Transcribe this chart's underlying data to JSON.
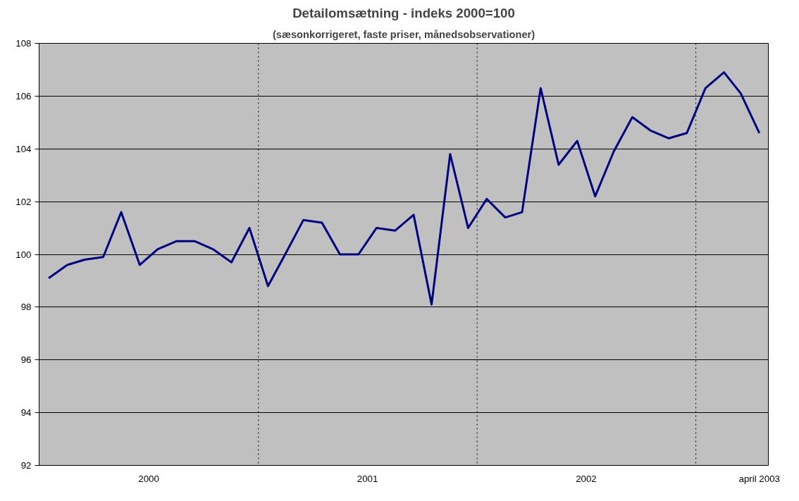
{
  "chart_data": {
    "type": "line",
    "title": "Detailomsætning - indeks 2000=100",
    "subtitle": "(sæsonkorrigeret, faste priser, månedsobservationer)",
    "x": [
      "2000-01",
      "2000-02",
      "2000-03",
      "2000-04",
      "2000-05",
      "2000-06",
      "2000-07",
      "2000-08",
      "2000-09",
      "2000-10",
      "2000-11",
      "2000-12",
      "2001-01",
      "2001-02",
      "2001-03",
      "2001-04",
      "2001-05",
      "2001-06",
      "2001-07",
      "2001-08",
      "2001-09",
      "2001-10",
      "2001-11",
      "2001-12",
      "2002-01",
      "2002-02",
      "2002-03",
      "2002-04",
      "2002-05",
      "2002-06",
      "2002-07",
      "2002-08",
      "2002-09",
      "2002-10",
      "2002-11",
      "2002-12",
      "2003-01",
      "2003-02",
      "2003-03",
      "2003-04"
    ],
    "series": [
      {
        "color": "#000080",
        "values": [
          99.1,
          99.6,
          99.8,
          99.9,
          101.6,
          99.6,
          100.2,
          100.5,
          100.5,
          100.2,
          99.7,
          101.0,
          98.8,
          100.1,
          101.3,
          101.2,
          100.0,
          100.0,
          101.0,
          100.9,
          101.5,
          98.1,
          103.8,
          101.0,
          102.1,
          101.4,
          101.6,
          106.3,
          103.4,
          104.3,
          102.2,
          103.9,
          105.2,
          104.7,
          104.4,
          104.6,
          106.3,
          106.9,
          106.1,
          104.6
        ]
      }
    ],
    "xlim": [
      "1999-12-16",
      "2003-04-16"
    ],
    "xticks": [
      {
        "value": "2000-06-16",
        "label": "2000"
      },
      {
        "value": "2001-06-16",
        "label": "2001"
      },
      {
        "value": "2002-06-16",
        "label": "2002"
      },
      {
        "value": "2003-04-01",
        "label": "april 2003"
      }
    ],
    "ylim": [
      92,
      108
    ],
    "yticks": [
      92,
      94,
      96,
      98,
      100,
      102,
      104,
      106,
      108
    ],
    "ref_lines": [
      {
        "axis": "x",
        "value": "2000-12-16",
        "line_style": "dotted",
        "color": "#000000"
      },
      {
        "axis": "x",
        "value": "2001-12-16",
        "line_style": "dotted",
        "color": "#000000"
      },
      {
        "axis": "x",
        "value": "2002-12-16",
        "line_style": "dotted",
        "color": "#000000"
      }
    ],
    "grid": "y",
    "marker": "none",
    "line_style": "solid"
  }
}
